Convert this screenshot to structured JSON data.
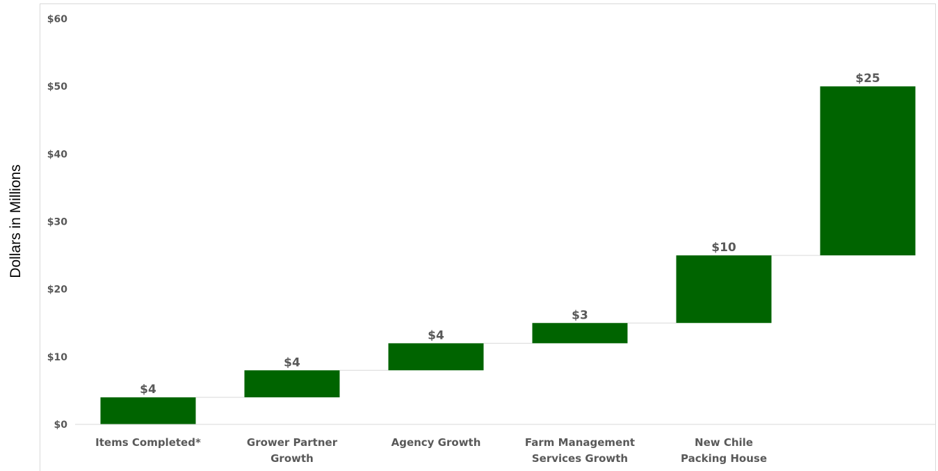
{
  "chart_data": {
    "type": "bar",
    "subtype": "waterfall",
    "ylabel": "Dollars in Millions",
    "ylim": [
      0,
      60
    ],
    "yticks": [
      "$0",
      "$10",
      "$20",
      "$30",
      "$40",
      "$50",
      "$60"
    ],
    "categories": [
      [
        "Items Completed*"
      ],
      [
        "Grower Partner",
        "Growth"
      ],
      [
        "Agency Growth"
      ],
      [
        "Farm Management",
        "Services Growth"
      ],
      [
        "New Chile",
        "Packing House"
      ],
      [
        ""
      ]
    ],
    "values": [
      4,
      4,
      4,
      3,
      10,
      25
    ],
    "bases": [
      0,
      4,
      8,
      12,
      15,
      25
    ],
    "data_labels": [
      "$4",
      "$4",
      "$4",
      "$3",
      "$10",
      "$25"
    ],
    "bar_color": "#006400",
    "connector_color": "#d9d9d9",
    "grid": false,
    "legend": "none"
  }
}
